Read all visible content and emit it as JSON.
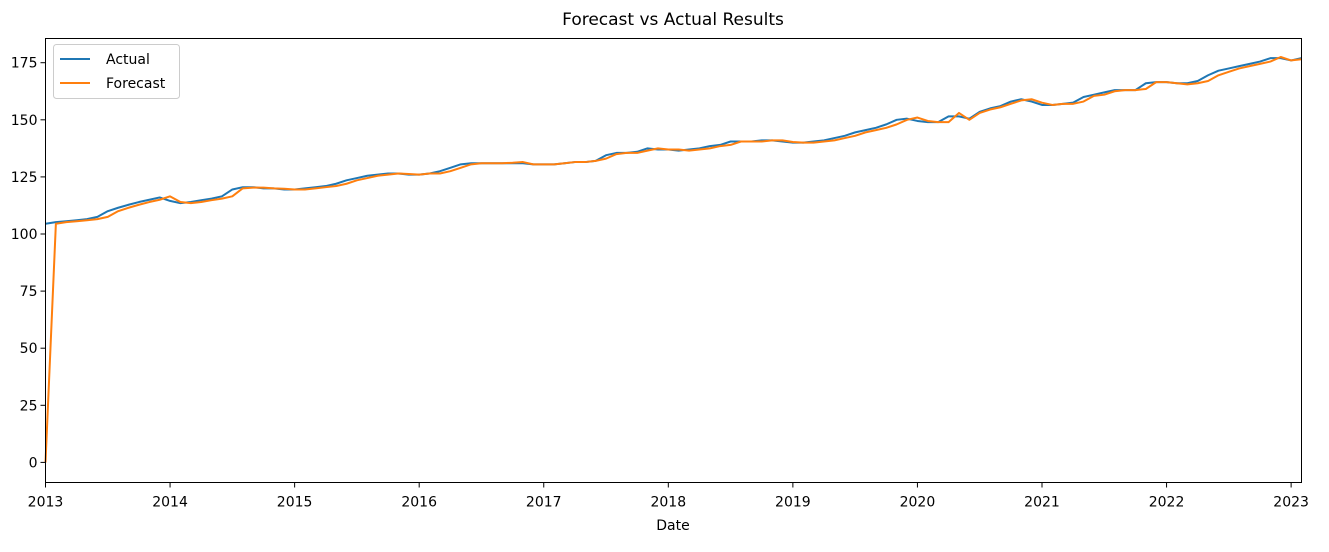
{
  "chart_data": {
    "type": "line",
    "title": "Forecast vs Actual Results",
    "xlabel": "Date",
    "ylabel": "",
    "xlim": [
      "2013-01",
      "2023-02"
    ],
    "ylim": [
      -8.8,
      185.6
    ],
    "x_ticks": [
      "2013",
      "2014",
      "2015",
      "2016",
      "2017",
      "2018",
      "2019",
      "2020",
      "2021",
      "2022",
      "2023"
    ],
    "y_ticks": [
      0,
      25,
      50,
      75,
      100,
      125,
      150,
      175
    ],
    "legend_position": "top-left",
    "grid": false,
    "x": [
      "2013-01",
      "2013-02",
      "2013-03",
      "2013-04",
      "2013-05",
      "2013-06",
      "2013-07",
      "2013-08",
      "2013-09",
      "2013-10",
      "2013-11",
      "2013-12",
      "2014-01",
      "2014-02",
      "2014-03",
      "2014-04",
      "2014-05",
      "2014-06",
      "2014-07",
      "2014-08",
      "2014-09",
      "2014-10",
      "2014-11",
      "2014-12",
      "2015-01",
      "2015-02",
      "2015-03",
      "2015-04",
      "2015-05",
      "2015-06",
      "2015-07",
      "2015-08",
      "2015-09",
      "2015-10",
      "2015-11",
      "2015-12",
      "2016-01",
      "2016-02",
      "2016-03",
      "2016-04",
      "2016-05",
      "2016-06",
      "2016-07",
      "2016-08",
      "2016-09",
      "2016-10",
      "2016-11",
      "2016-12",
      "2017-01",
      "2017-02",
      "2017-03",
      "2017-04",
      "2017-05",
      "2017-06",
      "2017-07",
      "2017-08",
      "2017-09",
      "2017-10",
      "2017-11",
      "2017-12",
      "2018-01",
      "2018-02",
      "2018-03",
      "2018-04",
      "2018-05",
      "2018-06",
      "2018-07",
      "2018-08",
      "2018-09",
      "2018-10",
      "2018-11",
      "2018-12",
      "2019-01",
      "2019-02",
      "2019-03",
      "2019-04",
      "2019-05",
      "2019-06",
      "2019-07",
      "2019-08",
      "2019-09",
      "2019-10",
      "2019-11",
      "2019-12",
      "2020-01",
      "2020-02",
      "2020-03",
      "2020-04",
      "2020-05",
      "2020-06",
      "2020-07",
      "2020-08",
      "2020-09",
      "2020-10",
      "2020-11",
      "2020-12",
      "2021-01",
      "2021-02",
      "2021-03",
      "2021-04",
      "2021-05",
      "2021-06",
      "2021-07",
      "2021-08",
      "2021-09",
      "2021-10",
      "2021-11",
      "2021-12",
      "2022-01",
      "2022-02",
      "2022-03",
      "2022-04",
      "2022-05",
      "2022-06",
      "2022-07",
      "2022-08",
      "2022-09",
      "2022-10",
      "2022-11",
      "2022-12",
      "2023-01",
      "2023-02"
    ],
    "series": [
      {
        "name": "Actual",
        "color": "#1f77b4",
        "values": [
          104.5,
          105.2,
          105.6,
          106.0,
          106.5,
          107.5,
          110.0,
          111.5,
          112.8,
          114.0,
          115.0,
          116.0,
          114.5,
          113.5,
          114.0,
          114.8,
          115.5,
          116.5,
          119.5,
          120.5,
          120.5,
          120.0,
          120.0,
          119.5,
          119.5,
          120.0,
          120.5,
          121.0,
          122.0,
          123.5,
          124.5,
          125.5,
          126.0,
          126.5,
          126.5,
          126.0,
          126.0,
          126.5,
          127.5,
          129.0,
          130.5,
          131.0,
          131.0,
          131.0,
          131.0,
          131.0,
          131.0,
          130.5,
          130.5,
          130.5,
          131.0,
          131.5,
          131.5,
          132.0,
          134.5,
          135.5,
          135.5,
          136.0,
          137.5,
          137.0,
          137.0,
          136.5,
          137.0,
          137.5,
          138.5,
          139.0,
          140.5,
          140.5,
          140.5,
          141.0,
          141.0,
          140.5,
          140.0,
          140.0,
          140.5,
          141.0,
          142.0,
          143.0,
          144.5,
          145.5,
          146.5,
          148.0,
          150.0,
          150.5,
          149.5,
          149.0,
          149.0,
          151.5,
          151.5,
          150.5,
          153.5,
          155.0,
          156.0,
          158.0,
          159.0,
          158.0,
          156.5,
          156.5,
          157.0,
          157.5,
          160.0,
          161.0,
          162.0,
          163.0,
          163.0,
          163.0,
          166.0,
          166.5,
          166.5,
          166.0,
          166.0,
          167.0,
          169.5,
          171.5,
          172.5,
          173.5,
          174.5,
          175.5,
          177.0,
          177.0,
          176.0,
          177.0
        ]
      },
      {
        "name": "Forecast",
        "color": "#ff7f0e",
        "values": [
          0.0,
          104.5,
          105.2,
          105.6,
          106.0,
          106.5,
          107.5,
          110.0,
          111.5,
          112.8,
          114.0,
          115.0,
          116.5,
          114.0,
          113.5,
          114.0,
          114.8,
          115.5,
          116.5,
          120.0,
          120.3,
          120.3,
          120.0,
          119.8,
          119.5,
          119.5,
          120.0,
          120.5,
          121.0,
          122.0,
          123.5,
          124.5,
          125.5,
          126.0,
          126.5,
          126.3,
          126.0,
          126.5,
          126.5,
          127.5,
          129.0,
          130.5,
          131.0,
          131.0,
          131.0,
          131.2,
          131.5,
          130.5,
          130.5,
          130.5,
          131.0,
          131.5,
          131.5,
          132.0,
          133.0,
          135.0,
          135.5,
          135.5,
          136.5,
          137.5,
          137.0,
          137.0,
          136.5,
          137.0,
          137.5,
          138.5,
          139.0,
          140.5,
          140.5,
          140.5,
          141.0,
          141.0,
          140.3,
          140.0,
          140.0,
          140.5,
          141.0,
          142.0,
          143.0,
          144.5,
          145.5,
          146.5,
          148.0,
          150.0,
          151.0,
          149.5,
          149.0,
          149.0,
          153.0,
          150.0,
          153.0,
          154.5,
          155.5,
          157.0,
          158.5,
          159.0,
          157.5,
          156.5,
          157.0,
          157.0,
          158.0,
          160.5,
          161.0,
          162.5,
          163.0,
          163.0,
          163.5,
          166.5,
          166.5,
          166.0,
          165.5,
          166.0,
          167.0,
          169.5,
          171.0,
          172.5,
          173.5,
          174.5,
          175.5,
          177.5,
          176.0,
          176.5
        ]
      }
    ]
  }
}
